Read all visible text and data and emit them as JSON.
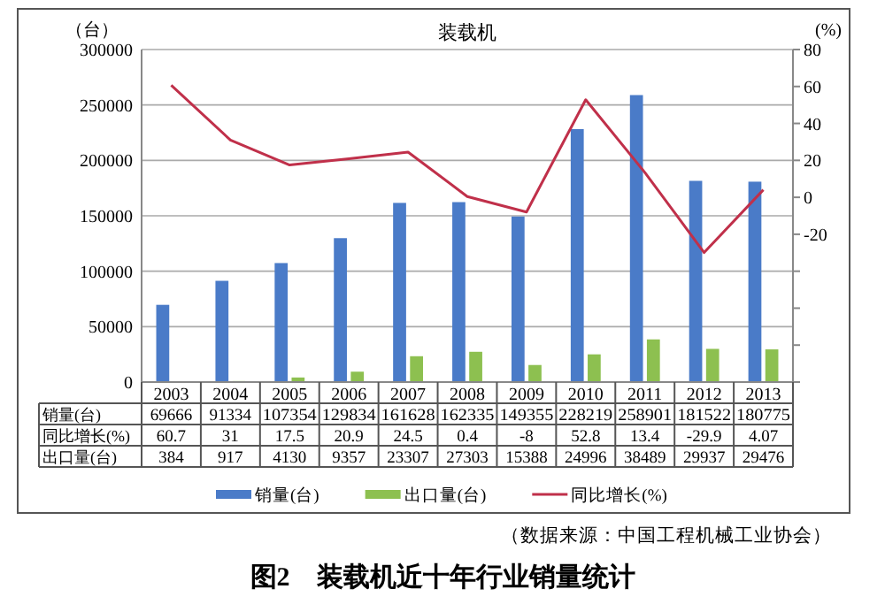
{
  "chart_data": {
    "type": "bar",
    "title": "装载机",
    "ylabel": "（台）",
    "y2label": "(%)",
    "categories": [
      "2003",
      "2004",
      "2005",
      "2006",
      "2007",
      "2008",
      "2009",
      "2010",
      "2011",
      "2012",
      "2013"
    ],
    "series": [
      {
        "name": "销量(台)",
        "color": "#4a7bc8",
        "values": [
          69666,
          91334,
          107354,
          129834,
          161628,
          162335,
          149355,
          228219,
          258901,
          181522,
          180775
        ]
      },
      {
        "name": "同比增长(%)",
        "type": "line",
        "axis": "y2",
        "color": "#c0304a",
        "values": [
          60.7,
          31,
          17.5,
          20.9,
          24.5,
          0.4,
          -8,
          52.8,
          13.4,
          -29.9,
          4.07
        ]
      },
      {
        "name": "出口量(台)",
        "color": "#8dc050",
        "values": [
          384,
          917,
          4130,
          9357,
          23307,
          27303,
          15388,
          24996,
          38489,
          29937,
          29476
        ]
      }
    ],
    "ylim": [
      0,
      300000
    ],
    "yticks": [
      0,
      50000,
      100000,
      150000,
      200000,
      250000,
      300000
    ],
    "y2lim": [
      -100,
      80
    ],
    "y2ticks": [
      {
        "value": -100,
        "label": null
      },
      {
        "value": -80,
        "label": null
      },
      {
        "value": -60,
        "label": null
      },
      {
        "value": -40,
        "label": null
      },
      -20,
      0,
      20,
      40,
      60,
      80
    ],
    "grid": "y",
    "legend": "bottom",
    "data_labels": true,
    "marker": "none",
    "line_style": "solid",
    "annotations": [
      "（数据来源：中国工程机械工业协会）",
      "图2　装载机近十年行业销量统计"
    ]
  }
}
